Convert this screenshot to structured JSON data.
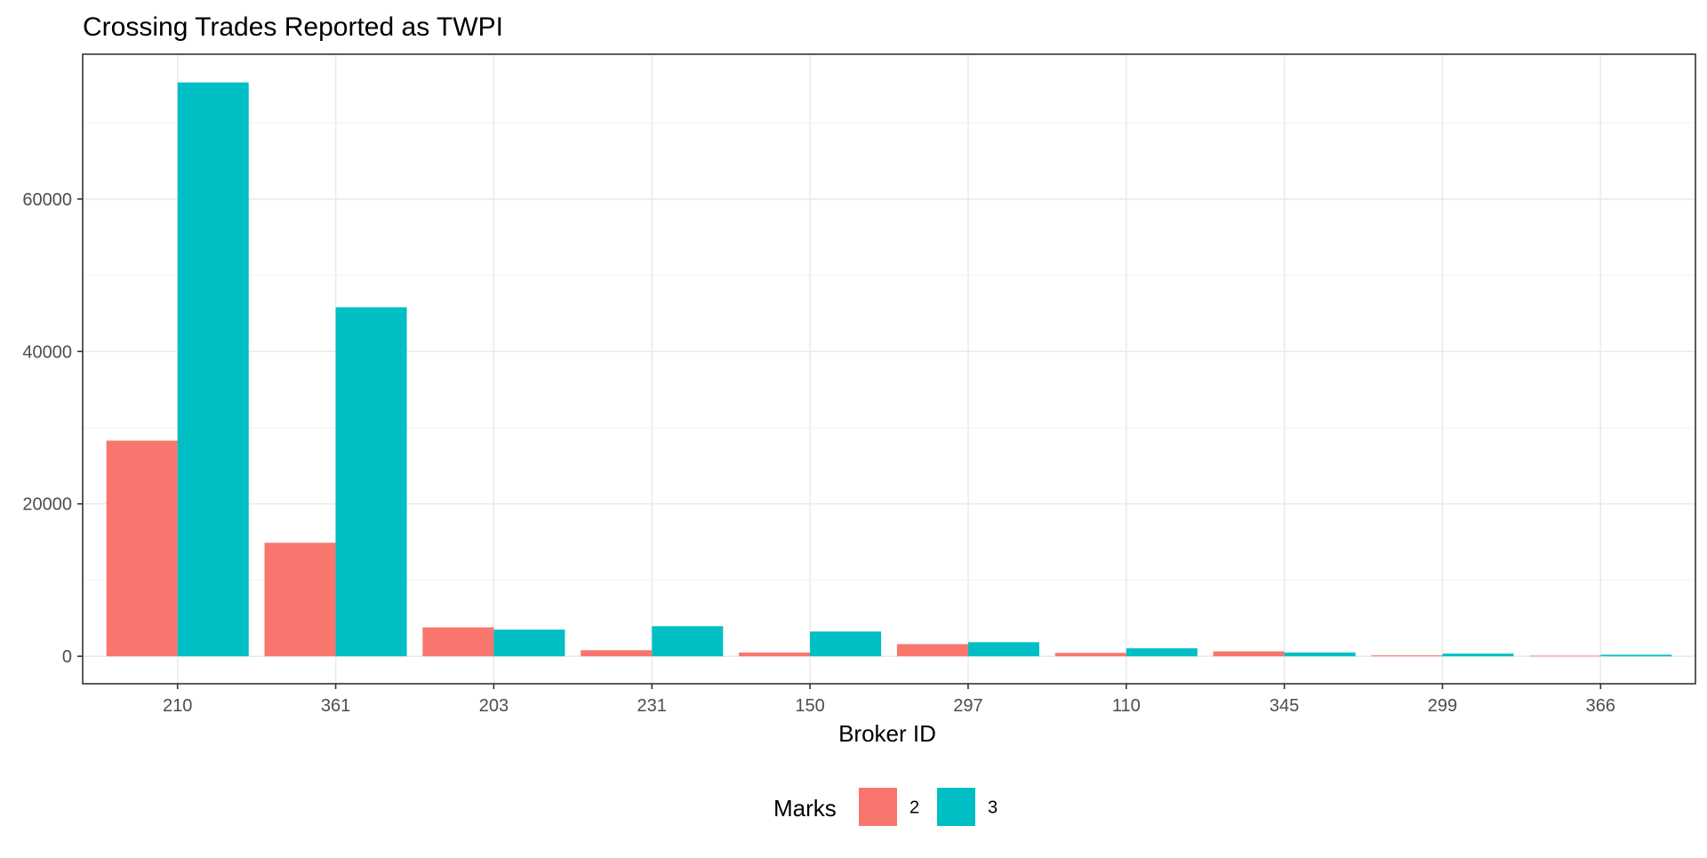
{
  "chart_data": {
    "type": "bar",
    "title": "Crossing Trades Reported as TWPI",
    "xlabel": "Broker ID",
    "ylabel": "",
    "categories": [
      "210",
      "361",
      "203",
      "231",
      "150",
      "297",
      "110",
      "345",
      "299",
      "366"
    ],
    "series": [
      {
        "name": "2",
        "color": "#F8766D",
        "values": [
          28300,
          14900,
          3800,
          800,
          500,
          1600,
          450,
          650,
          120,
          80
        ]
      },
      {
        "name": "3",
        "color": "#00BFC4",
        "values": [
          75300,
          45800,
          3500,
          3950,
          3250,
          1850,
          1050,
          500,
          350,
          200
        ]
      }
    ],
    "ylim": [
      -3600,
      79000
    ],
    "yticks": [
      0,
      20000,
      40000,
      60000
    ],
    "ytick_labels": [
      "0",
      "20000",
      "40000",
      "60000"
    ],
    "grid": true,
    "legend": {
      "title": "Marks",
      "position": "bottom"
    }
  }
}
